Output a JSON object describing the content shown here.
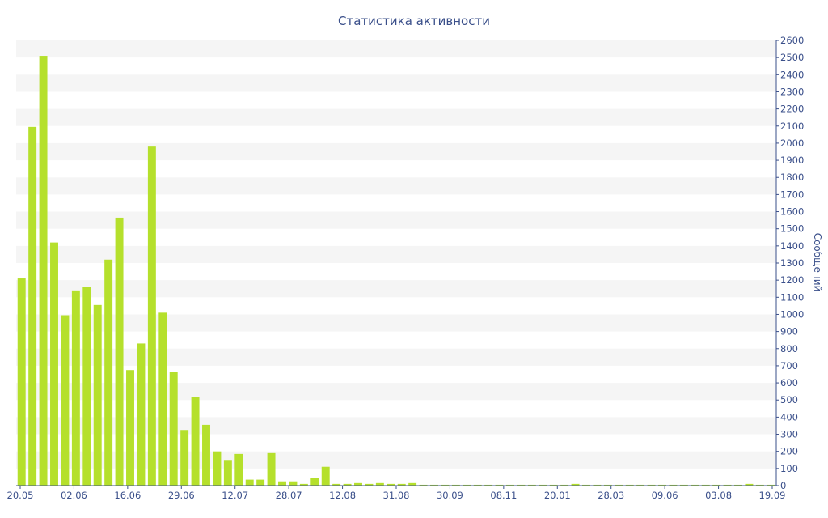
{
  "chart_data": {
    "type": "bar",
    "title": "Статистика активности",
    "xlabel": "",
    "ylabel": "Сообщений",
    "ylim": [
      0,
      2600
    ],
    "y_ticks": [
      "0",
      "100",
      "200",
      "300",
      "400",
      "500",
      "600",
      "700",
      "800",
      "900",
      "1000",
      "1100",
      "1200",
      "1300",
      "1400",
      "1500",
      "1600",
      "1700",
      "1800",
      "1900",
      "2000",
      "2100",
      "2200",
      "2300",
      "2400",
      "2500",
      "2600"
    ],
    "x_tick_labels": [
      "20.05",
      "02.06",
      "16.06",
      "29.06",
      "12.07",
      "28.07",
      "12.08",
      "31.08",
      "30.09",
      "08.11",
      "20.01",
      "28.03",
      "09.06",
      "03.08",
      "19.09"
    ],
    "y_axis_position": "right",
    "grid": "horizontal bands",
    "bar_color": "#b5e02c",
    "band_color": "#f5f5f5",
    "text_color": "#3a4f8a",
    "values": [
      1210,
      2095,
      2510,
      1420,
      995,
      1140,
      1160,
      1055,
      1320,
      1565,
      675,
      830,
      1980,
      1010,
      665,
      325,
      520,
      355,
      200,
      150,
      185,
      35,
      35,
      190,
      25,
      25,
      10,
      45,
      110,
      10,
      10,
      15,
      10,
      15,
      10,
      10,
      15,
      5,
      5,
      5,
      5,
      5,
      5,
      5,
      5,
      5,
      5,
      5,
      5,
      5,
      5,
      10,
      5,
      5,
      5,
      5,
      5,
      5,
      5,
      5,
      5,
      5,
      5,
      5,
      5,
      5,
      5,
      10,
      5,
      5
    ]
  }
}
